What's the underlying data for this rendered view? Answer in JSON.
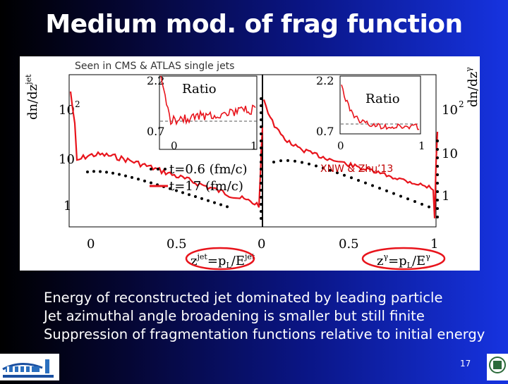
{
  "slide": {
    "title": "Medium mod. of frag function",
    "page_number": "17"
  },
  "figure": {
    "caption": "Seen in CMS & ATLAS single jets",
    "citation": "XNW & Zhu’13",
    "left_panel": {
      "y_label": "dn/dz^jet",
      "x_label": "z^jet=p_L/E^jet",
      "y_ticks": [
        "10^2",
        "10",
        "1"
      ],
      "x_ticks": [
        "0",
        "0.5"
      ],
      "inset": {
        "title": "Ratio",
        "y_ticks": [
          "2.2",
          "0.7"
        ],
        "x_ticks": [
          "0",
          "1"
        ]
      },
      "legend": [
        {
          "label": "t=0.6 (fm/c)",
          "style": "dots",
          "color": "#000000"
        },
        {
          "label": "t=17  (fm/c)",
          "style": "line",
          "color": "#e8141c"
        }
      ]
    },
    "right_panel": {
      "y_label": "dn/dz^γ",
      "x_label": "z^γ=p_L/E^γ",
      "y_ticks": [
        "10^2",
        "10",
        "1"
      ],
      "x_ticks": [
        "0",
        "0.5",
        "1"
      ],
      "inset": {
        "title": "Ratio",
        "y_ticks": [
          "2.2",
          "0.7"
        ],
        "x_ticks": [
          "0",
          "1"
        ]
      }
    },
    "colors": {
      "curve": "#e8141c",
      "dots": "#000000",
      "highlight_ellipse": "#e8141c"
    }
  },
  "bullets": [
    "Energy of reconstructed jet dominated by leading particle",
    "Jet azimuthal angle broadening is smaller but still finite",
    "Suppression of fragmentation functions relative to initial energy"
  ],
  "logos": {
    "left": "Berkeley Lab logo",
    "right": "university seal"
  }
}
